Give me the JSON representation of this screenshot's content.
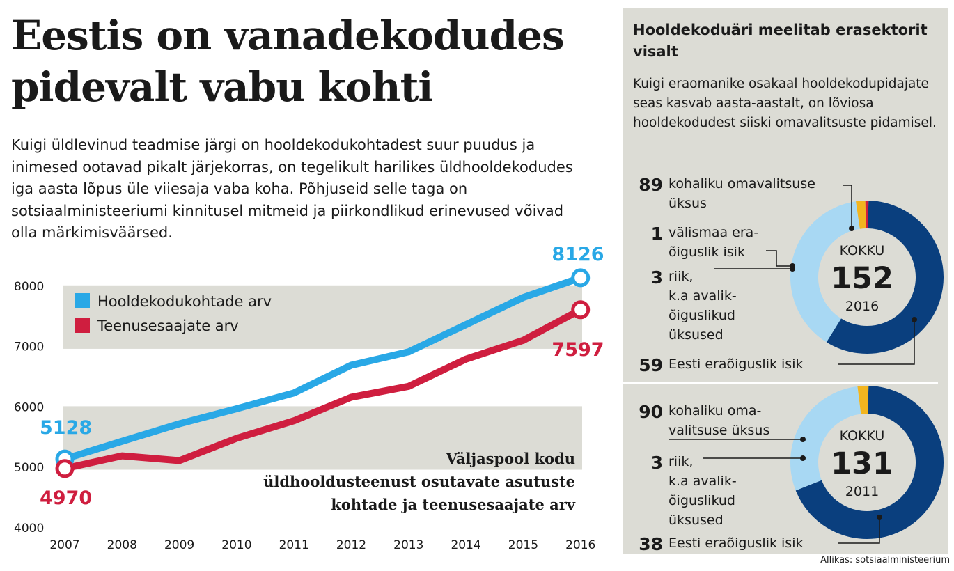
{
  "headline": "Eestis on vanadekodudes pidevalt vabu kohti",
  "intro": "Kuigi üldlevinud teadmise järgi on hooldekodukohtadest suur puudus ja inimesed ootavad pikalt järjekorras, on tegelikult harilikes üldhooldekodudes iga aasta lõpus üle viiesaja vaba koha. Põhjuseid selle taga on sotsiaalministeeriumi kinnitusel mitmeid ja piirkondlikud erinevused võivad olla märkimisväärsed.",
  "side_title": "Hooldekoduäri meelitab erasektorit visalt",
  "side_intro": "Kuigi eraomanike osakaal hooldekodupidajate seas kasvab aasta-aastalt, on lõviosa hooldekodudest siiski omavalitsuste pidamisel.",
  "source": "Allikas: sotsiaalministeerium",
  "colors": {
    "places": "#29a8e6",
    "clients": "#cf1e3f",
    "band": "#dcdcd5",
    "municipal": "#0a3f7e",
    "private": "#a8d8f3",
    "state": "#f2b51f",
    "foreign": "#cf1e3f",
    "text": "#1a1a1a"
  },
  "chart_data": [
    {
      "type": "line",
      "title": "Väljaspool kodu üldhooldusteenust osutavate asutuste kohtade ja teenusesaajate arv",
      "x": [
        2007,
        2008,
        2009,
        2010,
        2011,
        2012,
        2013,
        2014,
        2015,
        2016
      ],
      "ylim": [
        4000,
        8300
      ],
      "yticks": [
        4000,
        5000,
        6000,
        7000,
        8000
      ],
      "grid": false,
      "legend": "top-left",
      "series": [
        {
          "name": "Hooldekodukohtade arv",
          "values": [
            5128,
            5420,
            5710,
            5960,
            6220,
            6680,
            6900,
            7350,
            7800,
            8126
          ],
          "start_label": "5128",
          "end_label": "8126"
        },
        {
          "name": "Teenusesaajate arv",
          "values": [
            4970,
            5180,
            5100,
            5470,
            5760,
            6150,
            6330,
            6780,
            7090,
            7597
          ],
          "start_label": "4970",
          "end_label": "7597"
        }
      ]
    },
    {
      "type": "pie",
      "center_label": "KOKKU",
      "total": "152",
      "year": "2016",
      "slices": [
        {
          "value": 89,
          "value_label": "89",
          "label_lines": [
            "kohaliku omavalitsuse",
            "üksus"
          ],
          "color_key": "municipal"
        },
        {
          "value": 59,
          "value_label": "59",
          "label_lines": [
            "Eesti eraõiguslik isik"
          ],
          "color_key": "private"
        },
        {
          "value": 3,
          "value_label": "3",
          "label_lines": [
            "riik,",
            "k.a avalik-",
            "õiguslikud",
            "üksused"
          ],
          "color_key": "state"
        },
        {
          "value": 1,
          "value_label": "1",
          "label_lines": [
            "välismaa era-",
            "õiguslik isik"
          ],
          "color_key": "foreign"
        }
      ]
    },
    {
      "type": "pie",
      "center_label": "KOKKU",
      "total": "131",
      "year": "2011",
      "slices": [
        {
          "value": 90,
          "value_label": "90",
          "label_lines": [
            "kohaliku oma-",
            "valitsuse üksus"
          ],
          "color_key": "municipal"
        },
        {
          "value": 38,
          "value_label": "38",
          "label_lines": [
            "Eesti eraõiguslik isik"
          ],
          "color_key": "private"
        },
        {
          "value": 3,
          "value_label": "3",
          "label_lines": [
            "riik,",
            "k.a avalik-",
            "õiguslikud",
            "üksused"
          ],
          "color_key": "state"
        }
      ]
    }
  ]
}
